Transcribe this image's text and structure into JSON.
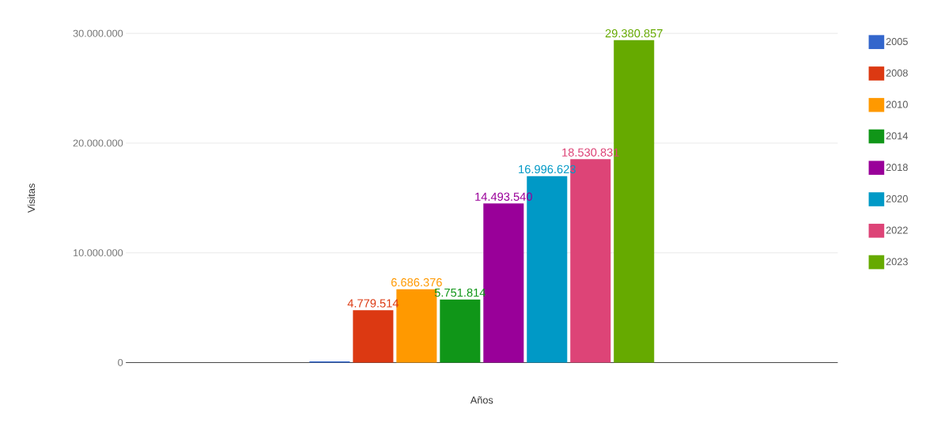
{
  "chart_data": {
    "type": "bar",
    "xlabel": "Años",
    "ylabel": "Visitas",
    "categories": [
      null
    ],
    "series": [
      {
        "name": "2005",
        "color": "#3366cc",
        "values": [
          100000
        ],
        "value_labels": [
          null
        ]
      },
      {
        "name": "2008",
        "color": "#dc3912",
        "values": [
          4779514
        ],
        "value_labels": [
          "4.779.514"
        ]
      },
      {
        "name": "2010",
        "color": "#ff9900",
        "values": [
          6686376
        ],
        "value_labels": [
          "6.686.376"
        ]
      },
      {
        "name": "2014",
        "color": "#109618",
        "values": [
          5751814
        ],
        "value_labels": [
          "5.751.814"
        ]
      },
      {
        "name": "2018",
        "color": "#990099",
        "values": [
          14493540
        ],
        "value_labels": [
          "14.493.540"
        ]
      },
      {
        "name": "2020",
        "color": "#0099c6",
        "values": [
          16996623
        ],
        "value_labels": [
          "16.996.623"
        ]
      },
      {
        "name": "2022",
        "color": "#dd4477",
        "values": [
          18530831
        ],
        "value_labels": [
          "18.530.831"
        ]
      },
      {
        "name": "2023",
        "color": "#66aa00",
        "values": [
          29380857
        ],
        "value_labels": [
          "29.380.857"
        ]
      }
    ],
    "ylim": [
      0,
      30000000
    ],
    "yticks": [
      0,
      {
        "value": 10000000,
        "label": "10.000.000"
      },
      {
        "value": 20000000,
        "label": "20.000.000"
      },
      {
        "value": 30000000,
        "label": "30.000.000"
      }
    ],
    "grid": "y",
    "legend": "right"
  }
}
